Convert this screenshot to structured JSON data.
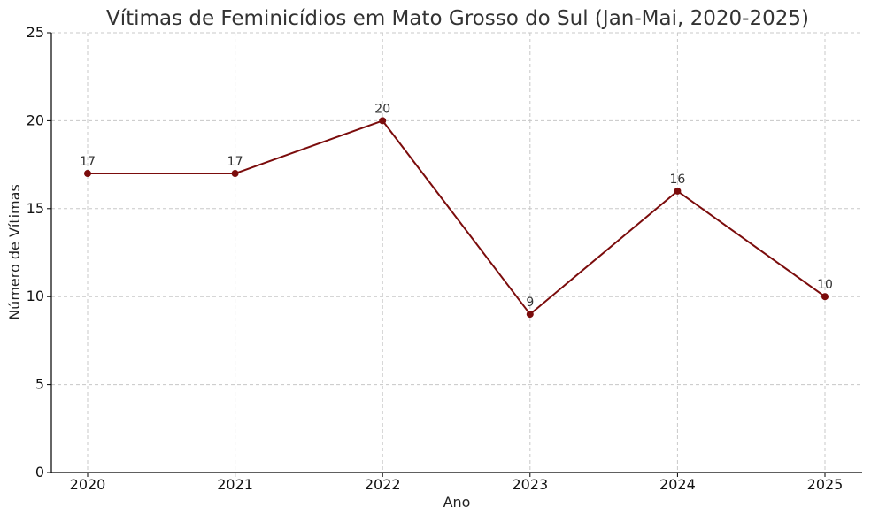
{
  "chart_data": {
    "type": "line",
    "title": "Vítimas de Feminicídios em Mato Grosso do Sul (Jan-Mai, 2020-2025)",
    "xlabel": "Ano",
    "ylabel": "Número de Vítimas",
    "categories": [
      "2020",
      "2021",
      "2022",
      "2023",
      "2024",
      "2025"
    ],
    "series": [
      {
        "values": [
          17,
          17,
          20,
          9,
          16,
          10
        ]
      }
    ],
    "ylim": [
      0,
      25
    ],
    "yticks": [
      0,
      5,
      10,
      15,
      20,
      25
    ],
    "grid": true,
    "marker": "circle",
    "data_labels": true,
    "colors": {
      "line": "#7b0c0c",
      "marker": "#7b0c0c"
    }
  }
}
